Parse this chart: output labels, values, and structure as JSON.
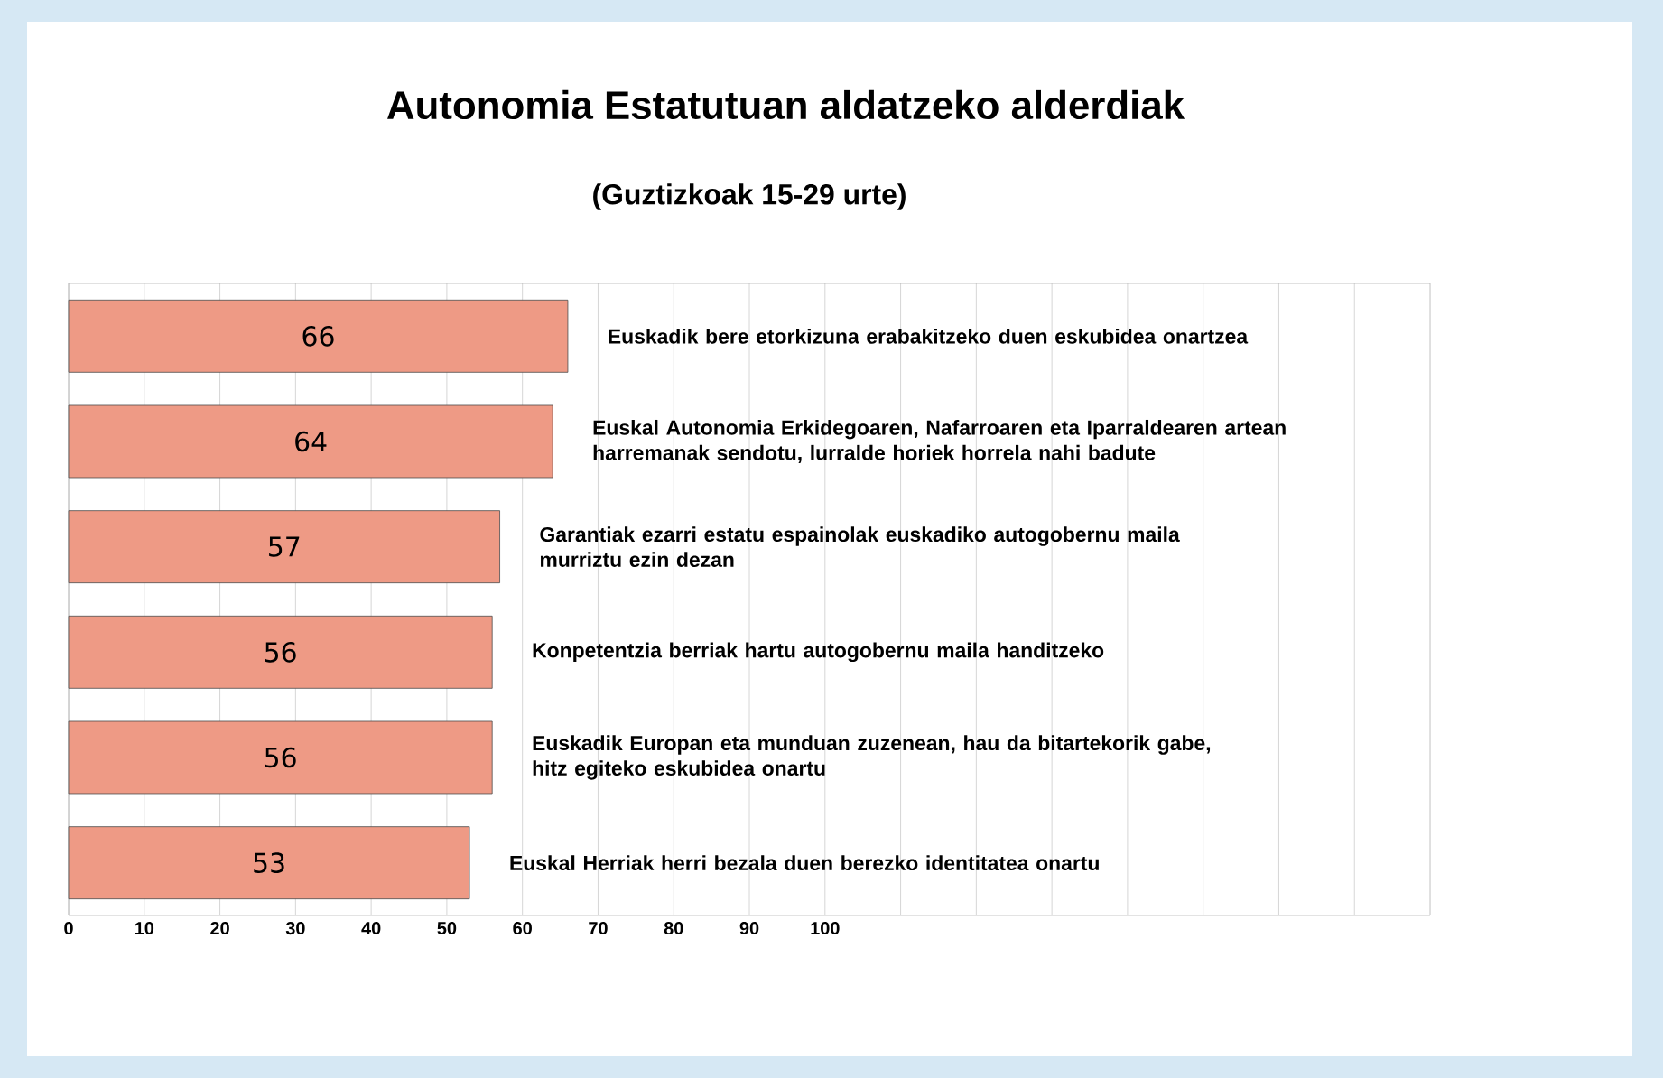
{
  "chart_data": {
    "type": "bar",
    "orientation": "horizontal",
    "title": "Autonomia Estatutuan aldatzeko alderdiak",
    "subtitle": "(Guztizkoak 15-29 urte)",
    "categories": [
      "Euskadik bere etorkizuna erabakitzeko duen eskubidea onartzea",
      "Euskal Autonomia Erkidegoaren, Nafarroaren eta Iparraldearen artean harremanak sendotu, lurralde horiek horrela nahi badute",
      "Garantiak ezarri estatu espainolak euskadiko autogobernu maila murriztu ezin dezan",
      "Konpetentzia berriak hartu autogobernu maila handitzeko",
      "Euskadik Europan eta munduan zuzenean, hau da bitartekorik gabe, hitz egiteko eskubidea onartu",
      "Euskal Herriak herri bezala duen berezko identitatea onartu"
    ],
    "values": [
      66,
      64,
      57,
      56,
      56,
      53
    ],
    "color": "#ee9a85",
    "data_labels": true,
    "xlim": [
      0,
      180
    ],
    "xticks": [
      0,
      10,
      20,
      30,
      40,
      50,
      60,
      70,
      80,
      90,
      100,
      {
        "value": 110,
        "label": null
      },
      {
        "value": 120,
        "label": null
      },
      {
        "value": 130,
        "label": null
      },
      {
        "value": 140,
        "label": null
      },
      {
        "value": 150,
        "label": null
      },
      {
        "value": 160,
        "label": null
      },
      {
        "value": 170,
        "label": null
      }
    ],
    "grid": "x"
  }
}
